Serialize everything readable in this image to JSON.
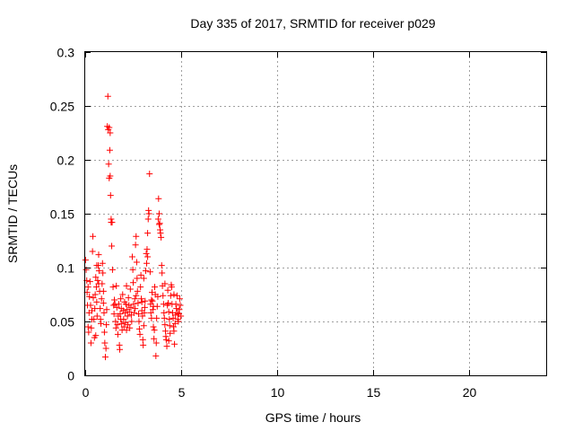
{
  "chart_data": {
    "type": "scatter",
    "title": "Day 335 of 2017, SRMTID for receiver p029",
    "xlabel": "GPS time / hours",
    "ylabel": "SRMTID / TECUs",
    "xlim": [
      0,
      24
    ],
    "ylim": [
      0,
      0.3
    ],
    "xticks": [
      0,
      5,
      10,
      15,
      20
    ],
    "xtick_labels": [
      "0",
      "5",
      "10",
      "15",
      "20"
    ],
    "yticks": [
      0,
      0.05,
      0.1,
      0.15,
      0.2,
      0.25,
      0.3
    ],
    "ytick_labels": [
      "0",
      "0.05",
      "0.1",
      "0.15",
      "0.2",
      "0.25",
      "0.3"
    ],
    "grid": true,
    "marker": "+",
    "series": [
      {
        "name": "SRMTID",
        "color": "#ff0000",
        "points": [
          [
            0.02,
            0.107
          ],
          [
            0.05,
            0.098
          ],
          [
            0.08,
            0.088
          ],
          [
            0.1,
            0.077
          ],
          [
            0.12,
            0.065
          ],
          [
            0.15,
            0.045
          ],
          [
            0.18,
            0.04
          ],
          [
            0.2,
            0.058
          ],
          [
            0.22,
            0.073
          ],
          [
            0.25,
            0.087
          ],
          [
            0.28,
            0.065
          ],
          [
            0.3,
            0.03
          ],
          [
            0.32,
            0.044
          ],
          [
            0.35,
            0.06
          ],
          [
            0.38,
            0.115
          ],
          [
            0.4,
            0.129
          ],
          [
            0.42,
            0.072
          ],
          [
            0.45,
            0.052
          ],
          [
            0.48,
            0.035
          ],
          [
            0.5,
            0.062
          ],
          [
            0.52,
            0.075
          ],
          [
            0.55,
            0.091
          ],
          [
            0.58,
            0.082
          ],
          [
            0.6,
            0.068
          ],
          [
            0.62,
            0.055
          ],
          [
            0.65,
            0.088
          ],
          [
            0.68,
            0.102
          ],
          [
            0.7,
            0.112
          ],
          [
            0.72,
            0.097
          ],
          [
            0.75,
            0.078
          ],
          [
            0.78,
            0.062
          ],
          [
            0.8,
            0.052
          ],
          [
            0.82,
            0.048
          ],
          [
            0.85,
            0.071
          ],
          [
            0.88,
            0.085
          ],
          [
            0.9,
            0.104
          ],
          [
            0.92,
            0.095
          ],
          [
            0.95,
            0.067
          ],
          [
            0.98,
            0.058
          ],
          [
            1.0,
            0.04
          ],
          [
            1.02,
            0.03
          ],
          [
            1.05,
            0.017
          ],
          [
            1.08,
            0.025
          ],
          [
            1.1,
            0.047
          ],
          [
            1.12,
            0.061
          ],
          [
            1.15,
            0.231
          ],
          [
            1.18,
            0.259
          ],
          [
            1.2,
            0.228
          ],
          [
            1.22,
            0.196
          ],
          [
            1.25,
            0.183
          ],
          [
            1.28,
            0.209
          ],
          [
            1.3,
            0.185
          ],
          [
            1.32,
            0.167
          ],
          [
            1.35,
            0.145
          ],
          [
            1.38,
            0.12
          ],
          [
            1.4,
            0.142
          ],
          [
            1.42,
            0.098
          ],
          [
            1.45,
            0.082
          ],
          [
            1.48,
            0.065
          ],
          [
            1.5,
            0.057
          ],
          [
            1.52,
            0.07
          ],
          [
            1.55,
            0.066
          ],
          [
            1.58,
            0.05
          ],
          [
            1.6,
            0.044
          ],
          [
            1.62,
            0.083
          ],
          [
            1.65,
            0.063
          ],
          [
            1.68,
            0.047
          ],
          [
            1.7,
            0.038
          ],
          [
            1.72,
            0.055
          ],
          [
            1.75,
            0.066
          ],
          [
            1.78,
            0.028
          ],
          [
            1.8,
            0.024
          ],
          [
            1.82,
            0.057
          ],
          [
            1.85,
            0.071
          ],
          [
            1.88,
            0.062
          ],
          [
            1.9,
            0.048
          ],
          [
            1.92,
            0.042
          ],
          [
            1.95,
            0.075
          ],
          [
            1.98,
            0.06
          ],
          [
            2.0,
            0.052
          ],
          [
            2.02,
            0.045
          ],
          [
            2.05,
            0.068
          ],
          [
            2.08,
            0.058
          ],
          [
            2.1,
            0.049
          ],
          [
            2.12,
            0.066
          ],
          [
            2.15,
            0.083
          ],
          [
            2.18,
            0.061
          ],
          [
            2.2,
            0.055
          ],
          [
            2.22,
            0.047
          ],
          [
            2.25,
            0.072
          ],
          [
            2.28,
            0.065
          ],
          [
            2.3,
            0.059
          ],
          [
            2.32,
            0.044
          ],
          [
            2.35,
            0.08
          ],
          [
            2.38,
            0.063
          ],
          [
            2.4,
            0.056
          ],
          [
            2.42,
            0.05
          ],
          [
            2.45,
            0.11
          ],
          [
            2.48,
            0.098
          ],
          [
            2.5,
            0.086
          ],
          [
            2.52,
            0.066
          ],
          [
            2.55,
            0.058
          ],
          [
            2.58,
            0.071
          ],
          [
            2.6,
            0.062
          ],
          [
            2.62,
            0.121
          ],
          [
            2.65,
            0.129
          ],
          [
            2.68,
            0.105
          ],
          [
            2.7,
            0.09
          ],
          [
            2.72,
            0.078
          ],
          [
            2.75,
            0.067
          ],
          [
            2.78,
            0.057
          ],
          [
            2.8,
            0.05
          ],
          [
            2.82,
            0.043
          ],
          [
            2.85,
            0.038
          ],
          [
            2.88,
            0.082
          ],
          [
            2.9,
            0.093
          ],
          [
            2.92,
            0.071
          ],
          [
            2.95,
            0.06
          ],
          [
            2.98,
            0.055
          ],
          [
            3.0,
            0.033
          ],
          [
            3.02,
            0.028
          ],
          [
            3.05,
            0.046
          ],
          [
            3.08,
            0.058
          ],
          [
            3.1,
            0.063
          ],
          [
            3.12,
            0.069
          ],
          [
            3.15,
            0.097
          ],
          [
            3.18,
            0.113
          ],
          [
            3.2,
            0.104
          ],
          [
            3.22,
            0.117
          ],
          [
            3.25,
            0.132
          ],
          [
            3.28,
            0.145
          ],
          [
            3.3,
            0.153
          ],
          [
            3.32,
            0.15
          ],
          [
            3.35,
            0.187
          ],
          [
            3.38,
            0.096
          ],
          [
            3.4,
            0.066
          ],
          [
            3.42,
            0.058
          ],
          [
            3.45,
            0.053
          ],
          [
            3.48,
            0.077
          ],
          [
            3.5,
            0.069
          ],
          [
            3.52,
            0.061
          ],
          [
            3.55,
            0.045
          ],
          [
            3.58,
            0.034
          ],
          [
            3.6,
            0.042
          ],
          [
            3.62,
            0.082
          ],
          [
            3.65,
            0.075
          ],
          [
            3.68,
            0.018
          ],
          [
            3.7,
            0.03
          ],
          [
            3.72,
            0.053
          ],
          [
            3.75,
            0.064
          ],
          [
            3.78,
            0.073
          ],
          [
            3.8,
            0.145
          ],
          [
            3.82,
            0.164
          ],
          [
            3.85,
            0.15
          ],
          [
            3.88,
            0.141
          ],
          [
            3.9,
            0.135
          ],
          [
            3.92,
            0.132
          ],
          [
            3.95,
            0.128
          ],
          [
            3.98,
            0.102
          ],
          [
            4.0,
            0.095
          ],
          [
            4.02,
            0.083
          ],
          [
            4.05,
            0.074
          ],
          [
            4.08,
            0.066
          ],
          [
            4.1,
            0.058
          ],
          [
            4.12,
            0.053
          ],
          [
            4.15,
            0.047
          ],
          [
            4.18,
            0.041
          ],
          [
            4.2,
            0.036
          ],
          [
            4.22,
            0.033
          ],
          [
            4.25,
            0.027
          ],
          [
            4.28,
            0.065
          ],
          [
            4.3,
            0.079
          ],
          [
            4.32,
            0.067
          ],
          [
            4.35,
            0.059
          ],
          [
            4.38,
            0.052
          ],
          [
            4.4,
            0.046
          ],
          [
            4.42,
            0.039
          ],
          [
            4.45,
            0.074
          ],
          [
            4.48,
            0.084
          ],
          [
            4.5,
            0.082
          ],
          [
            4.52,
            0.066
          ],
          [
            4.55,
            0.058
          ],
          [
            4.58,
            0.053
          ],
          [
            4.6,
            0.045
          ],
          [
            4.62,
            0.041
          ],
          [
            4.65,
            0.029
          ],
          [
            4.68,
            0.048
          ],
          [
            4.7,
            0.056
          ],
          [
            4.72,
            0.066
          ],
          [
            4.75,
            0.062
          ],
          [
            4.78,
            0.074
          ],
          [
            4.8,
            0.058
          ],
          [
            4.82,
            0.052
          ],
          [
            4.85,
            0.05
          ],
          [
            4.88,
            0.057
          ],
          [
            4.9,
            0.061
          ],
          [
            4.92,
            0.071
          ],
          [
            4.95,
            0.065
          ],
          [
            4.98,
            0.055
          ],
          [
            1.25,
            0.23
          ],
          [
            1.3,
            0.225
          ],
          [
            1.35,
            0.142
          ],
          [
            0.6,
            0.102
          ],
          [
            0.7,
            0.085
          ],
          [
            0.95,
            0.078
          ],
          [
            2.15,
            0.042
          ],
          [
            2.95,
            0.068
          ],
          [
            3.25,
            0.11
          ],
          [
            3.55,
            0.064
          ],
          [
            3.85,
            0.14
          ],
          [
            4.15,
            0.085
          ],
          [
            4.35,
            0.032
          ],
          [
            4.62,
            0.075
          ],
          [
            0.15,
            0.082
          ],
          [
            0.35,
            0.052
          ],
          [
            0.55,
            0.037
          ],
          [
            1.85,
            0.052
          ],
          [
            2.65,
            0.074
          ],
          [
            3.05,
            0.09
          ],
          [
            3.45,
            0.07
          ]
        ]
      }
    ]
  }
}
